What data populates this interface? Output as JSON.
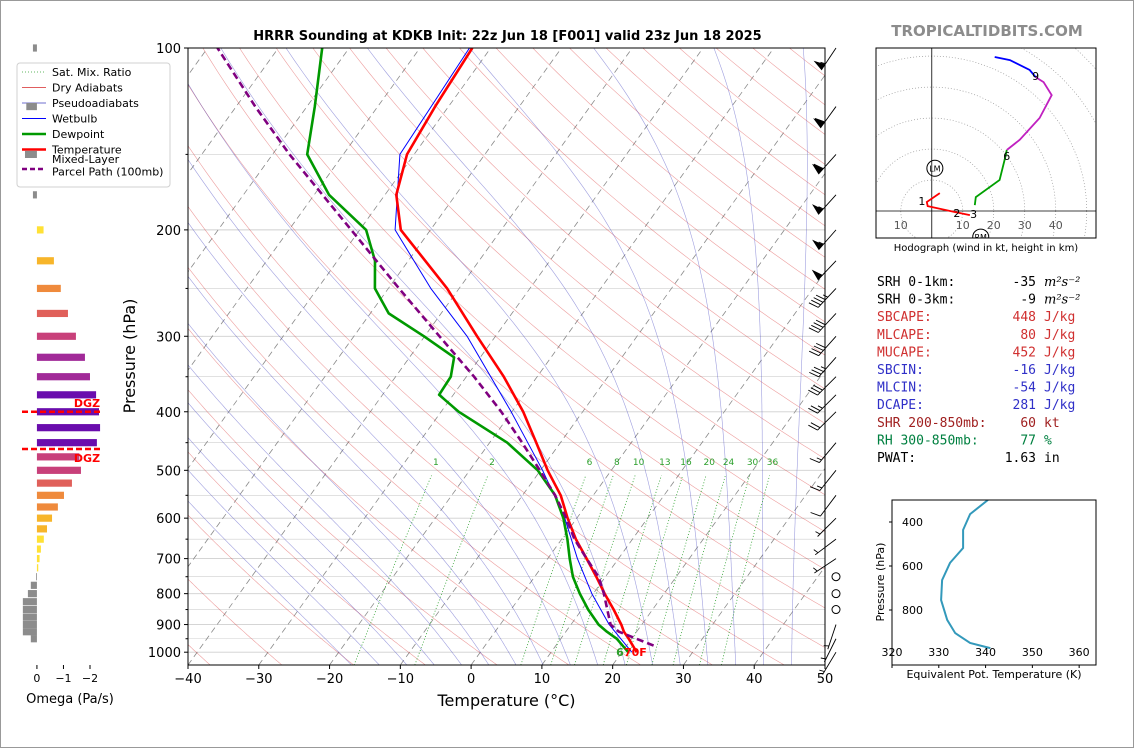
{
  "header": {
    "site": "TROPICALTIDBITS.COM"
  },
  "chart_data": [
    {
      "type": "skewt",
      "title": "HRRR Sounding at KDKB Init: 22z Jun 18 [F001] valid 23z Jun 18 2025",
      "xlabel": "Temperature (°C)",
      "ylabel": "Pressure (hPa)",
      "xlim": [
        -40,
        50
      ],
      "xticks": [
        {
          "value": -40,
          "label": "−40"
        },
        {
          "value": -30,
          "label": "−30"
        },
        {
          "value": -20,
          "label": "−20"
        },
        {
          "value": -10,
          "label": "−10"
        },
        0,
        10,
        20,
        30,
        40,
        50
      ],
      "ylim": [
        1050,
        100
      ],
      "log_y": true,
      "yticks": [
        100,
        200,
        300,
        400,
        500,
        600,
        700,
        800,
        900,
        1000
      ],
      "yticks_minor": [
        150,
        250,
        350,
        450,
        550,
        650,
        750,
        850,
        950
      ],
      "grid": true,
      "legend": "upper left",
      "background_lines": [
        {
          "name": "Sat. Mix. Ratio",
          "color": "#2ca02c"
        },
        {
          "name": "Dry Adiabats",
          "color": "#d62728"
        },
        {
          "name": "Pseudoadiabats",
          "color": "#3f3fbf"
        }
      ],
      "mixing_ratios": [
        1,
        2,
        6,
        8,
        10,
        13,
        16,
        20,
        24,
        30,
        36
      ],
      "series": [
        {
          "name": "Wetbulb",
          "color": "#0000ff",
          "pressure": [
            1000,
            900,
            800,
            700,
            600,
            500,
            400,
            300,
            250,
            200,
            150,
            100
          ],
          "values": [
            21.4,
            15.4,
            9.8,
            4.2,
            -1.7,
            -9.7,
            -20.1,
            -34.0,
            -44.0,
            -55.0,
            -62.0,
            -63.0
          ]
        },
        {
          "name": "Dewpoint",
          "color": "#009900",
          "pressure": [
            1000,
            950,
            925,
            900,
            850,
            800,
            750,
            700,
            650,
            600,
            550,
            500,
            450,
            400,
            375,
            350,
            325,
            300,
            275,
            250,
            225,
            200,
            175,
            150,
            125,
            100
          ],
          "values": [
            20.9,
            17.9,
            15.8,
            13.9,
            10.9,
            8.1,
            5.4,
            3.1,
            0.8,
            -1.9,
            -5.4,
            -10.4,
            -17.5,
            -27.5,
            -32.0,
            -32.2,
            -33.7,
            -40.1,
            -47.4,
            -51.9,
            -54.7,
            -59.1,
            -67.9,
            -75.1,
            -78.9,
            -83.8
          ]
        },
        {
          "name": "Temperature",
          "color": "#ff0000",
          "pressure": [
            1000,
            950,
            925,
            900,
            850,
            800,
            750,
            700,
            650,
            600,
            550,
            500,
            450,
            400,
            350,
            300,
            250,
            200,
            175,
            150,
            125,
            100
          ],
          "values": [
            22.1,
            19.6,
            18.2,
            17.1,
            14.5,
            11.6,
            8.7,
            5.5,
            2.0,
            -1.3,
            -4.6,
            -9.0,
            -13.4,
            -18.4,
            -24.7,
            -32.6,
            -41.7,
            -54.2,
            -58.4,
            -61.0,
            -61.9,
            -62.6
          ]
        },
        {
          "name": "Mixed-Layer\nParcel Path (100mb)",
          "color": "#800080",
          "dashed": true,
          "pressure": [
            975,
            925,
            900,
            850,
            800,
            750,
            700,
            650,
            600,
            550,
            500,
            450,
            400,
            350,
            300,
            250,
            200,
            150,
            125,
            100
          ],
          "values": [
            23.8,
            17.5,
            15.6,
            13.6,
            11.5,
            9.0,
            5.5,
            1.8,
            -1.5,
            -5.4,
            -10.1,
            -15.4,
            -21.5,
            -28.9,
            -37.9,
            -48.5,
            -61.2,
            -77.6,
            -87.3,
            -98.6
          ]
        }
      ],
      "surface_labels": [
        {
          "text": "6",
          "color": "#2ca02c"
        },
        {
          "text": "70F",
          "color": "#ff0000"
        }
      ],
      "wind_pressure": [
        100,
        125,
        150,
        175,
        200,
        225,
        250,
        275,
        300,
        325,
        350,
        375,
        400,
        450,
        500,
        550,
        600,
        650,
        700,
        750,
        800,
        850,
        900,
        950,
        1000
      ],
      "wind_u": [
        30,
        35,
        40,
        38,
        35,
        33,
        30,
        28,
        25,
        22,
        20,
        18,
        15,
        10,
        8,
        6,
        5,
        4,
        3,
        2,
        0,
        -1,
        1,
        2,
        3
      ],
      "wind_v": [
        45,
        48,
        45,
        42,
        40,
        35,
        32,
        30,
        28,
        25,
        20,
        18,
        15,
        12,
        10,
        8,
        5,
        3,
        2,
        1,
        0,
        2,
        3,
        4,
        5
      ]
    },
    {
      "type": "hbar",
      "xlabel": "Omega (Pa/s)",
      "xlim": [
        0.6,
        -2.4
      ],
      "xticks": [
        0,
        {
          "value": -1,
          "label": "−1"
        },
        {
          "value": -2,
          "label": "−2"
        }
      ],
      "ylim": [
        1050,
        100
      ],
      "levels": [
        100,
        125,
        150,
        175,
        200,
        225,
        250,
        275,
        300,
        325,
        350,
        375,
        400,
        425,
        450,
        475,
        500,
        525,
        550,
        575,
        600,
        625,
        650,
        675,
        700,
        725,
        750,
        775,
        800,
        825,
        850,
        875,
        900,
        925,
        950
      ],
      "values": [
        0.15,
        0.4,
        0.45,
        0.15,
        -0.25,
        -0.64,
        -0.9,
        -1.17,
        -1.47,
        -1.81,
        -2.0,
        -2.23,
        -2.34,
        -2.38,
        -2.26,
        -1.6,
        -1.66,
        -1.32,
        -1.02,
        -0.79,
        -0.57,
        -0.38,
        -0.26,
        -0.15,
        -0.1,
        -0.05,
        0.03,
        0.23,
        0.34,
        0.53,
        0.53,
        0.53,
        0.53,
        0.53,
        0.23
      ],
      "dgz_pressure": [
        400,
        461
      ],
      "dgz_labels": [
        "DGZ",
        "DGZ"
      ],
      "dgz_color": "#ff0000"
    },
    {
      "type": "hodograph",
      "caption": "Hodograph (wind in kt, height in km)",
      "xlim": [
        -18,
        53
      ],
      "ylim": [
        -8.7,
        52.6
      ],
      "xticks": [
        {
          "value": -10,
          "label": "10"
        },
        10,
        20,
        30,
        40
      ],
      "series": [
        {
          "color": "#ff0000",
          "u": [
            2.6,
            -1.6,
            -1.3,
            7.4,
            12.3
          ],
          "v": [
            5.8,
            2.9,
            1.6,
            -0.3,
            -1.3
          ]
        },
        {
          "color": "#00a000",
          "u": [
            13.9,
            14.2,
            21.9,
            23.5,
            24.2
          ],
          "v": [
            1.9,
            4.5,
            10,
            16.5,
            19.7
          ]
        },
        {
          "color": "#c020c0",
          "u": [
            24.2,
            28.4,
            34.8,
            38.7,
            36.1,
            33.5
          ],
          "v": [
            19.7,
            23,
            30,
            37.4,
            41.6,
            43.2
          ]
        },
        {
          "color": "#0000ff",
          "u": [
            33.5,
            31.6,
            25.2,
            20.3
          ],
          "v": [
            43.2,
            45.5,
            48.7,
            49.7
          ]
        }
      ],
      "heights": [
        1,
        2,
        3,
        6,
        9
      ],
      "height_u": [
        -3.2,
        8.1,
        13.5,
        24.2,
        33.5
      ],
      "height_v": [
        3.2,
        -0.6,
        -1,
        17.7,
        43.5
      ],
      "storm_motion": [
        {
          "label": "LM",
          "u": 1,
          "v": 13.8
        },
        {
          "label": "RM",
          "u": 15.8,
          "v": -8.4
        }
      ]
    },
    {
      "type": "line",
      "xlabel": "Equivalent Pot. Temperature (K)",
      "ylabel": "Pressure (hPa)",
      "xlim": [
        320,
        363.6
      ],
      "xticks": [
        320,
        330,
        340,
        350,
        360
      ],
      "ylim": [
        1050,
        300
      ],
      "yticks": [
        400,
        600,
        800
      ],
      "color": "#3399bb",
      "pressure": [
        300,
        364,
        436,
        518,
        586,
        664,
        755,
        845,
        905,
        950,
        973
      ],
      "values": [
        340.5,
        336.7,
        335.2,
        335.2,
        332.4,
        330.7,
        330.5,
        331.8,
        333.5,
        336.7,
        341.0
      ]
    }
  ],
  "stats": {
    "rows": [
      {
        "label": "SRH 0-1km:",
        "value": -35,
        "unit": "m²s⁻²",
        "color": "#000000"
      },
      {
        "label": "SRH 0-3km:",
        "value": -9,
        "unit": "m²s⁻²",
        "color": "#000000"
      },
      {
        "label": "SBCAPE:",
        "value": 448,
        "unit": "J/kg",
        "color": "#d03030"
      },
      {
        "label": "MLCAPE:",
        "value": 80,
        "unit": "J/kg",
        "color": "#d03030"
      },
      {
        "label": "MUCAPE:",
        "value": 452,
        "unit": "J/kg",
        "color": "#d03030"
      },
      {
        "label": "SBCIN:",
        "value": -16,
        "unit": "J/kg",
        "color": "#3030c8"
      },
      {
        "label": "MLCIN:",
        "value": -54,
        "unit": "J/kg",
        "color": "#3030c8"
      },
      {
        "label": "DCAPE:",
        "value": 281,
        "unit": "J/kg",
        "color": "#3030c8"
      },
      {
        "label": "SHR 200-850mb:",
        "value": 60,
        "unit": "kt",
        "color": "#a02020"
      },
      {
        "label": "RH 300-850mb:",
        "value": 77,
        "unit": "%",
        "color": "#008040"
      },
      {
        "label": "PWAT:",
        "value": 1.63,
        "unit": "in",
        "color": "#000000"
      }
    ]
  }
}
